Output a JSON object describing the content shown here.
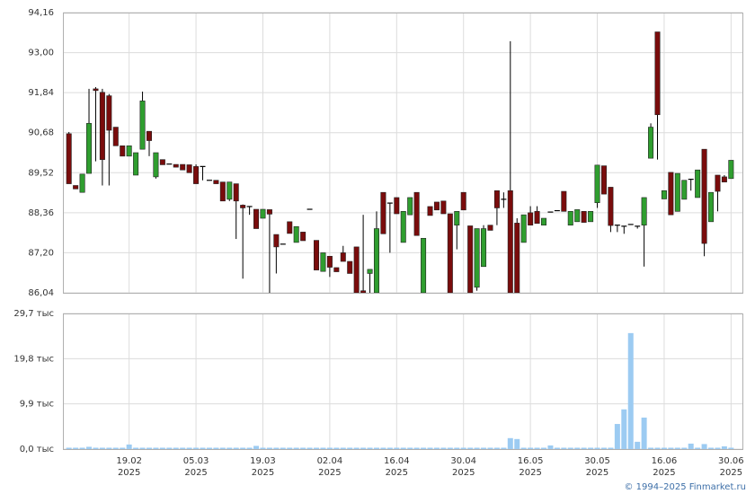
{
  "chart_data": {
    "type": "candlestick",
    "categories": [
      null,
      null,
      null,
      null,
      null,
      null,
      null,
      null,
      null,
      "19.02 2025",
      null,
      null,
      null,
      null,
      null,
      null,
      null,
      null,
      null,
      "05.03 2025",
      null,
      null,
      null,
      null,
      null,
      null,
      null,
      null,
      null,
      "19.03 2025",
      null,
      null,
      null,
      null,
      null,
      null,
      null,
      null,
      null,
      "02.04 2025",
      null,
      null,
      null,
      null,
      null,
      null,
      null,
      null,
      null,
      "16.04 2025",
      null,
      null,
      null,
      null,
      null,
      null,
      null,
      null,
      null,
      "30.04 2025",
      null,
      null,
      null,
      null,
      null,
      null,
      null,
      null,
      null,
      "16.05 2025",
      null,
      null,
      null,
      null,
      null,
      null,
      null,
      null,
      null,
      "30.05 2025",
      null,
      null,
      null,
      null,
      null,
      null,
      null,
      null,
      null,
      "16.06 2025",
      null,
      null,
      null,
      null,
      null,
      null,
      null,
      null,
      null,
      "30.06 2025"
    ],
    "open": [
      90.65,
      89.15,
      88.95,
      89.5,
      91.95,
      91.85,
      91.75,
      90.84,
      90.3,
      90.0,
      89.45,
      90.2,
      90.72,
      89.4,
      89.9,
      89.77,
      89.76,
      89.76,
      89.75,
      89.7,
      89.7,
      89.3,
      89.3,
      89.25,
      88.75,
      89.2,
      88.58,
      88.54,
      88.46,
      88.2,
      88.45,
      87.73,
      87.45,
      88.1,
      87.5,
      87.8,
      88.46,
      87.56,
      86.66,
      87.1,
      86.77,
      87.2,
      86.95,
      87.37,
      86.1,
      86.6,
      86.04,
      88.95,
      88.64,
      88.8,
      87.5,
      88.3,
      88.95,
      86.04,
      88.54,
      88.67,
      88.7,
      88.33,
      88.0,
      88.95,
      87.98,
      86.2,
      86.8,
      88.0,
      89.0,
      88.75,
      89.0,
      88.06,
      87.5,
      88.36,
      88.4,
      88.0,
      88.38,
      88.42,
      88.98,
      88.0,
      88.1,
      88.4,
      88.1,
      88.65,
      89.72,
      89.1,
      88.0,
      87.97,
      88.02,
      87.97,
      88.0,
      89.94,
      93.6,
      88.76,
      89.53,
      88.4,
      88.75,
      89.33,
      88.8,
      90.2,
      88.1,
      89.45,
      89.4,
      89.35
    ],
    "high": [
      90.7,
      89.15,
      89.48,
      91.95,
      92.0,
      91.95,
      91.8,
      90.84,
      90.3,
      90.3,
      90.1,
      91.87,
      90.72,
      90.1,
      89.9,
      89.77,
      89.76,
      89.76,
      89.75,
      89.76,
      89.7,
      89.3,
      89.3,
      89.25,
      89.25,
      89.2,
      88.6,
      88.54,
      88.46,
      88.46,
      88.45,
      87.73,
      87.45,
      88.1,
      87.96,
      87.8,
      88.46,
      87.56,
      87.2,
      87.1,
      86.77,
      87.4,
      86.95,
      87.37,
      88.3,
      86.72,
      88.4,
      88.95,
      88.64,
      88.8,
      88.4,
      88.8,
      88.95,
      87.62,
      88.54,
      88.67,
      88.7,
      88.33,
      88.4,
      88.95,
      87.98,
      87.9,
      88.0,
      88.0,
      89.0,
      88.95,
      93.33,
      88.2,
      88.3,
      88.55,
      88.55,
      88.2,
      88.38,
      88.42,
      88.98,
      88.4,
      88.45,
      88.4,
      88.4,
      89.74,
      89.72,
      89.1,
      88.0,
      87.97,
      88.02,
      87.97,
      88.8,
      90.95,
      93.6,
      89.0,
      89.53,
      89.5,
      89.3,
      89.33,
      89.6,
      90.2,
      88.95,
      89.45,
      89.45,
      89.88
    ],
    "low": [
      89.2,
      89.05,
      88.95,
      89.5,
      89.85,
      89.15,
      89.15,
      90.3,
      90.0,
      90.0,
      89.45,
      90.2,
      90.0,
      89.35,
      89.75,
      89.77,
      89.68,
      89.6,
      89.52,
      89.2,
      89.3,
      89.3,
      89.2,
      88.7,
      88.7,
      87.6,
      86.45,
      88.3,
      87.9,
      88.2,
      86.04,
      86.6,
      87.45,
      87.76,
      87.5,
      87.55,
      88.46,
      86.7,
      86.66,
      86.5,
      86.65,
      86.95,
      86.6,
      86.04,
      86.04,
      86.04,
      86.04,
      87.75,
      87.2,
      88.33,
      87.5,
      88.3,
      87.7,
      86.04,
      88.28,
      88.44,
      88.33,
      86.04,
      87.3,
      88.44,
      86.04,
      86.1,
      86.8,
      87.85,
      88.0,
      88.5,
      86.04,
      86.04,
      87.5,
      88.0,
      88.05,
      88.0,
      88.38,
      88.42,
      88.4,
      88.0,
      88.1,
      88.08,
      88.1,
      88.5,
      88.9,
      87.8,
      87.8,
      87.75,
      88.02,
      87.9,
      86.8,
      89.94,
      89.9,
      88.76,
      88.3,
      88.4,
      88.75,
      89.0,
      88.8,
      87.1,
      88.1,
      88.4,
      89.25,
      89.35
    ],
    "close": [
      89.2,
      89.05,
      89.48,
      90.95,
      91.9,
      89.9,
      90.75,
      90.3,
      90.0,
      90.3,
      90.1,
      91.6,
      90.45,
      90.1,
      89.75,
      89.77,
      89.68,
      89.6,
      89.52,
      89.2,
      89.7,
      89.3,
      89.2,
      88.7,
      89.25,
      88.7,
      88.5,
      88.54,
      87.9,
      88.46,
      88.32,
      87.37,
      87.45,
      87.76,
      87.96,
      87.55,
      88.46,
      86.7,
      87.2,
      86.78,
      86.65,
      86.95,
      86.6,
      86.04,
      86.04,
      86.72,
      87.9,
      87.75,
      88.64,
      88.33,
      88.4,
      88.8,
      87.7,
      87.62,
      88.28,
      88.44,
      88.33,
      86.04,
      88.4,
      88.44,
      86.04,
      87.9,
      87.9,
      87.85,
      88.5,
      88.75,
      86.04,
      86.04,
      88.3,
      88.0,
      88.05,
      88.2,
      88.38,
      88.42,
      88.4,
      88.4,
      88.45,
      88.08,
      88.4,
      89.74,
      88.9,
      87.99,
      88.0,
      87.97,
      88.02,
      87.97,
      88.8,
      90.84,
      91.2,
      89.0,
      88.3,
      89.5,
      89.3,
      89.33,
      89.6,
      87.47,
      88.95,
      88.98,
      89.25,
      89.88
    ],
    "colors": {
      "up": "#2f9e2f",
      "down": "#7a0c0c",
      "flat": "#000000",
      "volume": "#9ccbf2"
    },
    "ylim": [
      86.04,
      94.16
    ],
    "yticks": [
      {
        "value": 86.04,
        "label": "86,04"
      },
      {
        "value": 87.2,
        "label": "87,20"
      },
      {
        "value": 88.36,
        "label": "88,36"
      },
      {
        "value": 89.52,
        "label": "89,52"
      },
      {
        "value": 90.68,
        "label": "90,68"
      },
      {
        "value": 91.84,
        "label": "91,84"
      },
      {
        "value": 93.0,
        "label": "93,00"
      },
      {
        "value": 94.16,
        "label": "94,16"
      }
    ],
    "volume": {
      "values": [
        0.3,
        0.3,
        0.3,
        0.5,
        0.3,
        0.3,
        0.3,
        0.3,
        0.3,
        1.0,
        0.3,
        0.3,
        0.3,
        0.3,
        0.3,
        0.3,
        0.3,
        0.3,
        0.3,
        0.3,
        0.3,
        0.3,
        0.3,
        0.3,
        0.3,
        0.3,
        0.3,
        0.3,
        0.7,
        0.3,
        0.3,
        0.3,
        0.3,
        0.3,
        0.3,
        0.3,
        0.3,
        0.3,
        0.3,
        0.3,
        0.3,
        0.3,
        0.3,
        0.3,
        0.3,
        0.3,
        0.3,
        0.3,
        0.3,
        0.3,
        0.3,
        0.3,
        0.3,
        0.3,
        0.3,
        0.3,
        0.3,
        0.3,
        0.3,
        0.3,
        0.3,
        0.3,
        0.3,
        0.3,
        0.3,
        0.3,
        2.4,
        2.2,
        0.3,
        0.3,
        0.3,
        0.3,
        0.8,
        0.3,
        0.3,
        0.3,
        0.3,
        0.3,
        0.3,
        0.3,
        0.3,
        0.3,
        5.5,
        8.7,
        25.4,
        1.6,
        6.9,
        0.3,
        0.3,
        0.3,
        0.3,
        0.3,
        0.3,
        1.2,
        0.3,
        1.1,
        0.3,
        0.3,
        0.6,
        0.3
      ],
      "ylim": [
        0,
        29.7
      ],
      "yticks": [
        {
          "value": 0,
          "label": "0,0 тыс"
        },
        {
          "value": 9.9,
          "label": "9,9 тыс"
        },
        {
          "value": 19.8,
          "label": "19,8 тыс"
        },
        {
          "value": 29.7,
          "label": "29,7 тыс"
        }
      ]
    },
    "grid": true,
    "credit": "© 1994–2025 Finmarket.ru"
  }
}
